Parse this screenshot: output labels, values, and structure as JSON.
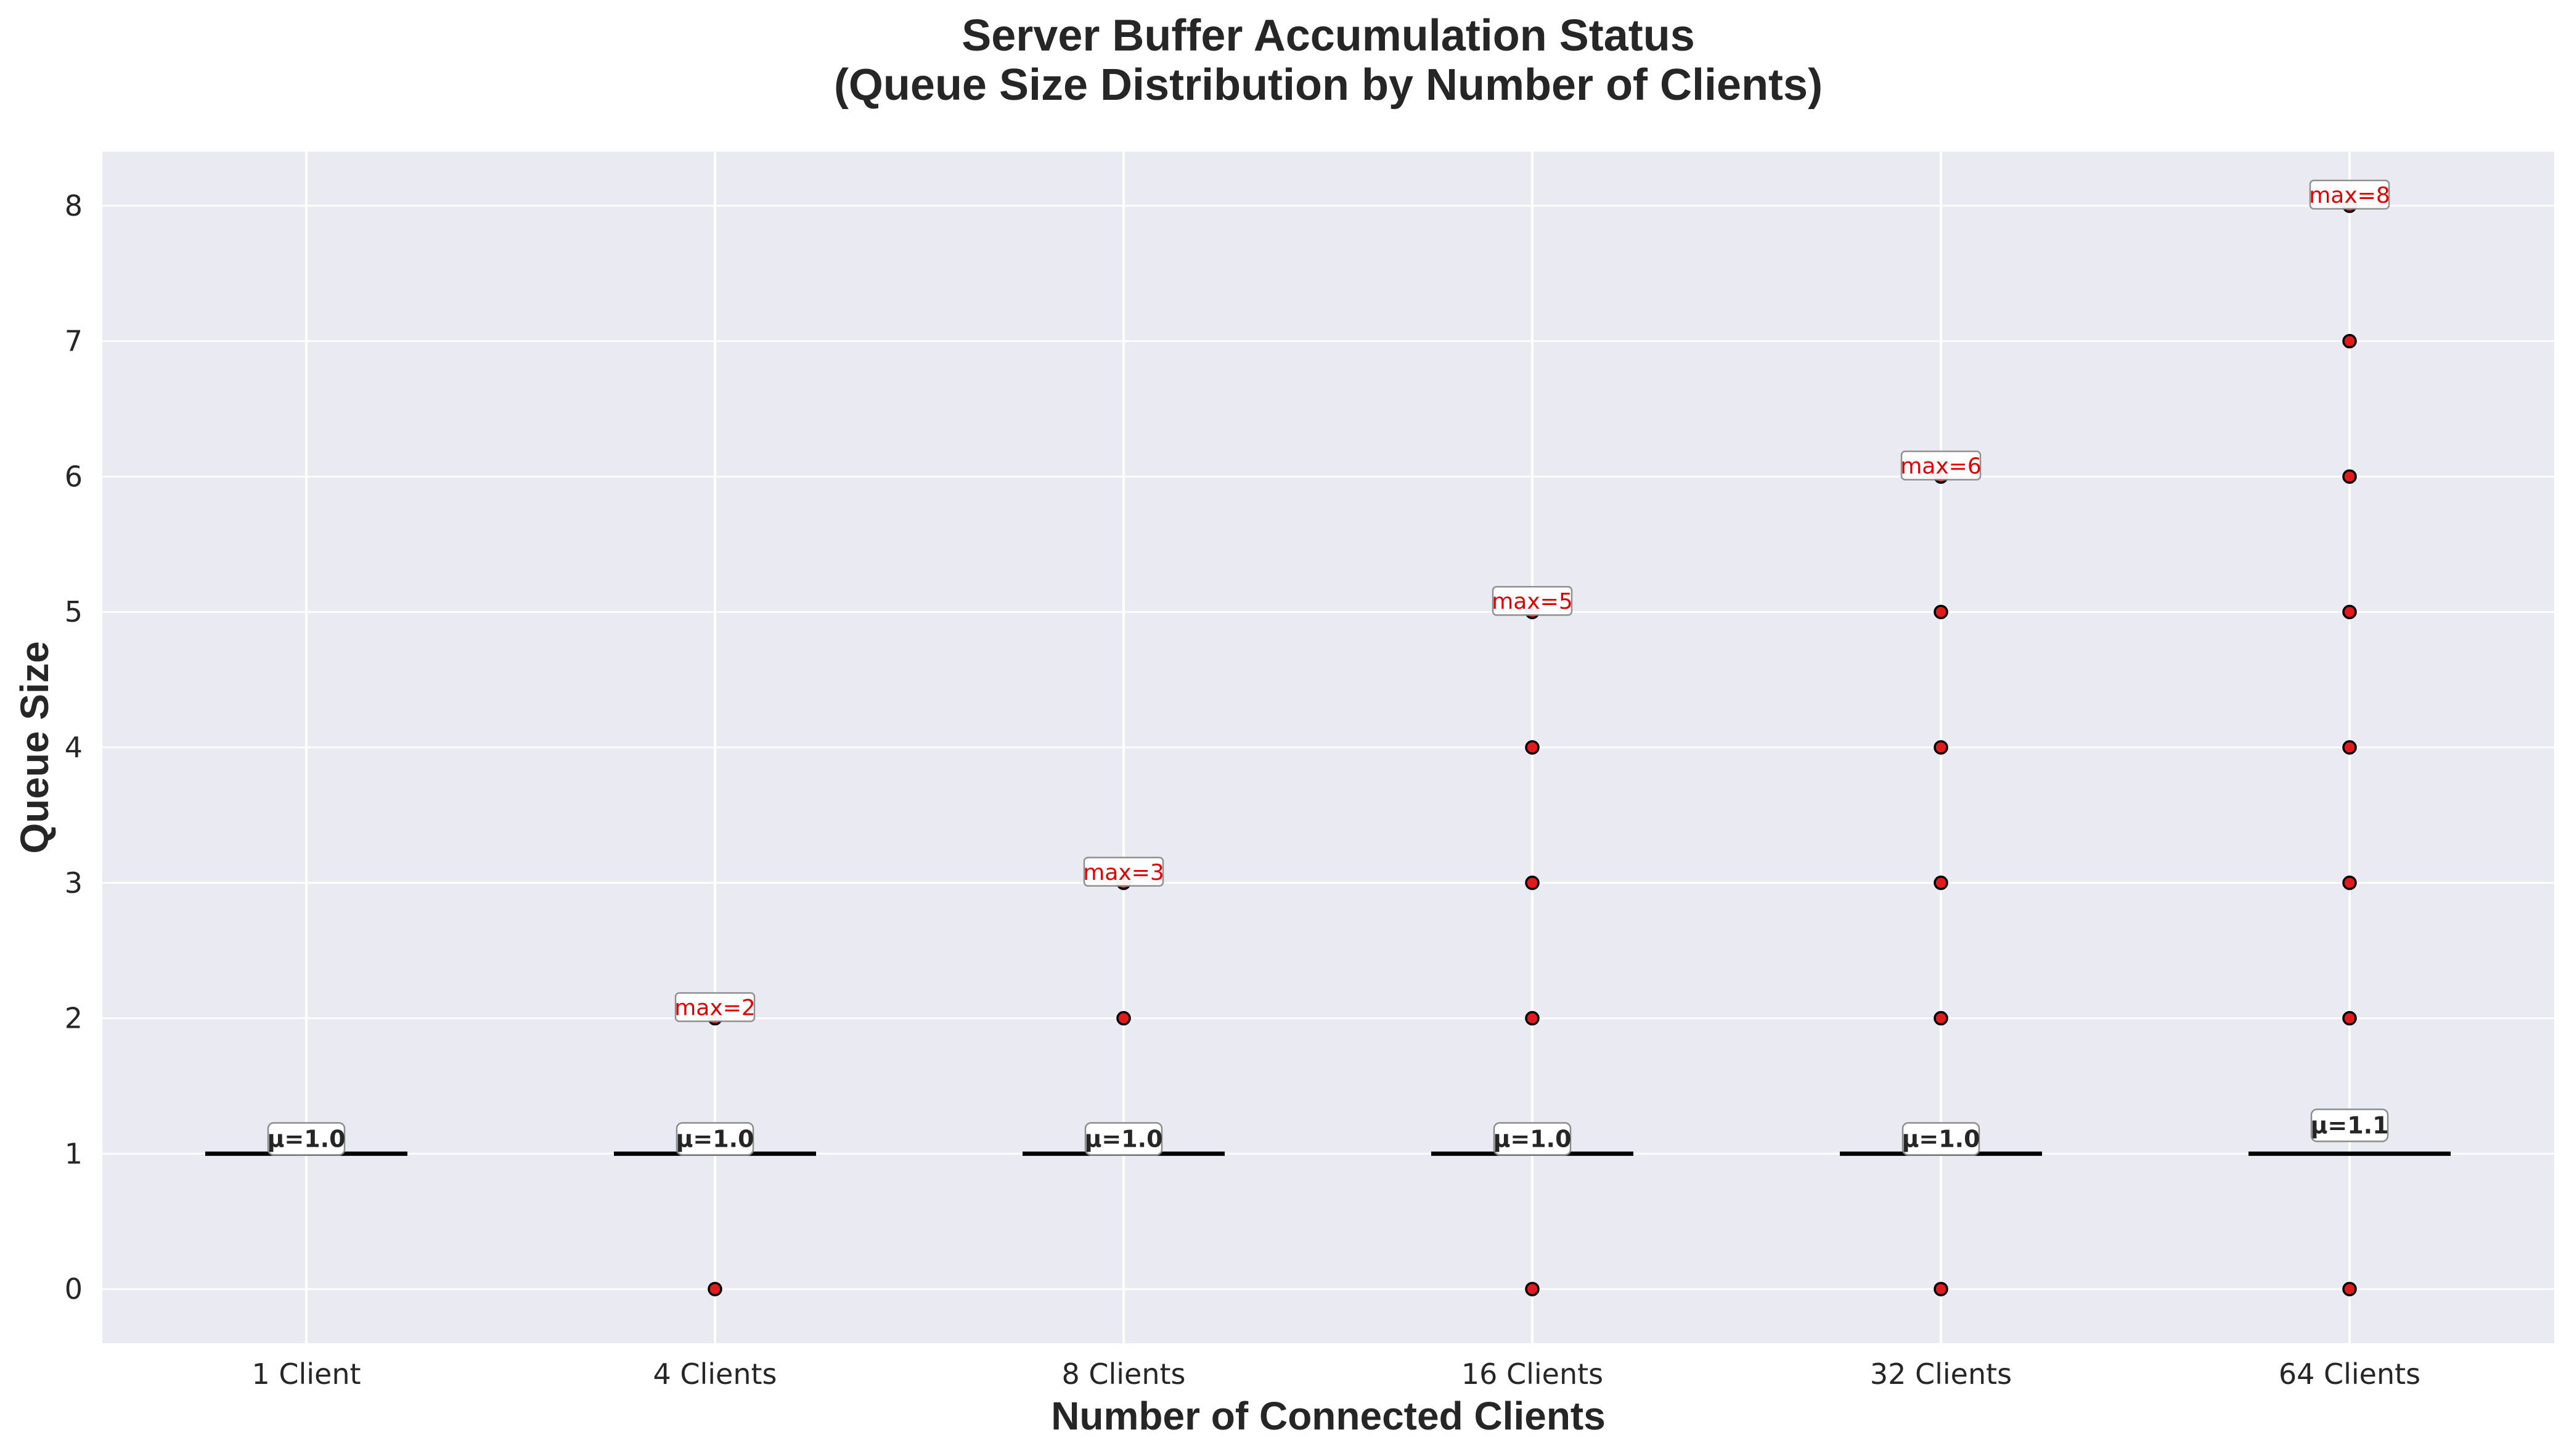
{
  "chart_data": {
    "type": "scatter",
    "title_line1": "Server Buffer Accumulation Status",
    "title_line2": "(Queue Size Distribution by Number of Clients)",
    "xlabel": "Number of Connected Clients",
    "ylabel": "Queue Size",
    "categories": [
      "1 Client",
      "4 Clients",
      "8 Clients",
      "16 Clients",
      "32 Clients",
      "64 Clients"
    ],
    "ylim": [
      -0.4,
      8.4
    ],
    "yticks": [
      0,
      1,
      2,
      3,
      4,
      5,
      6,
      7,
      8
    ],
    "grid": true,
    "median": [
      1,
      1,
      1,
      1,
      1,
      1
    ],
    "outliers": [
      [],
      [
        0,
        2
      ],
      [
        2,
        3
      ],
      [
        0,
        2,
        3,
        4,
        5
      ],
      [
        0,
        2,
        3,
        4,
        5,
        6
      ],
      [
        0,
        2,
        3,
        4,
        5,
        6,
        7,
        8
      ]
    ],
    "mean_labels": [
      "μ=1.0",
      "μ=1.0",
      "μ=1.0",
      "μ=1.0",
      "μ=1.0",
      "μ=1.1"
    ],
    "means": [
      1.0,
      1.0,
      1.0,
      1.0,
      1.0,
      1.1
    ],
    "max_values": [
      null,
      2,
      3,
      5,
      6,
      8
    ],
    "max_labels": [
      "",
      "max=2",
      "max=3",
      "max=5",
      "max=6",
      "max=8"
    ],
    "colors": {
      "plot_background": "#eaeaf2",
      "grid": "#ffffff",
      "median_line": "#000000",
      "outlier_fill": "#e31a1c",
      "outlier_edge": "#000000",
      "max_text": "#e00000"
    }
  }
}
